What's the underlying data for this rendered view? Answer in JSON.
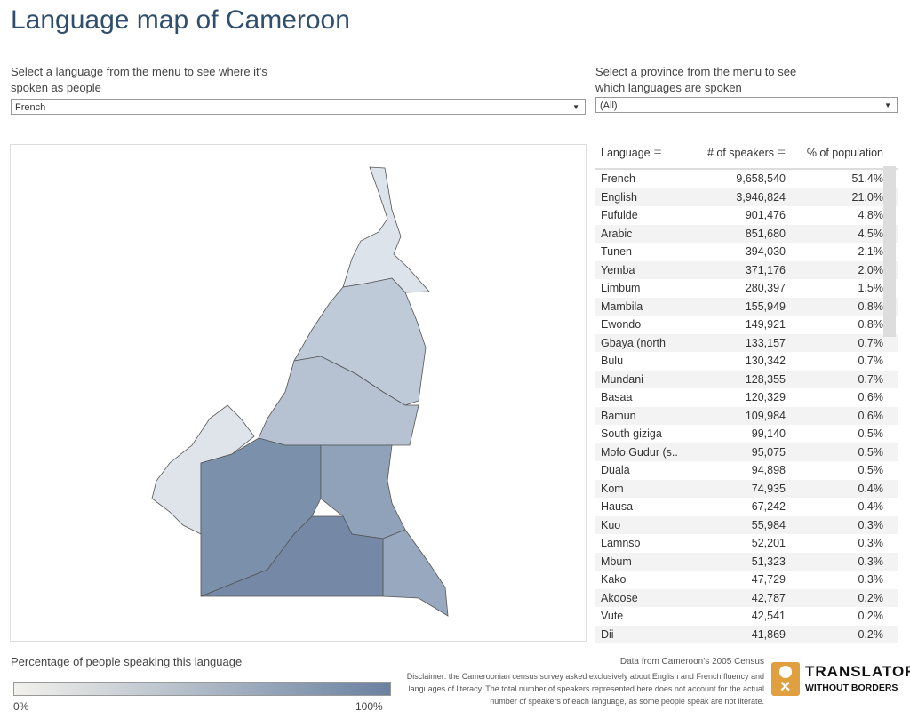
{
  "title": "Language map of Cameroon",
  "language_filter": {
    "label": "Select a language from the menu to see where it’s spoken as people",
    "value": "French"
  },
  "province_filter": {
    "label": "Select a province from the menu to see which languages are spoken",
    "value": "(All)"
  },
  "table": {
    "headers": [
      "Language",
      "# of speakers",
      "% of population"
    ],
    "rows": [
      [
        "French",
        "9,658,540",
        "51.4%"
      ],
      [
        "English",
        "3,946,824",
        "21.0%"
      ],
      [
        "Fufulde",
        "901,476",
        "4.8%"
      ],
      [
        "Arabic",
        "851,680",
        "4.5%"
      ],
      [
        "Tunen",
        "394,030",
        "2.1%"
      ],
      [
        "Yemba",
        "371,176",
        "2.0%"
      ],
      [
        "Limbum",
        "280,397",
        "1.5%"
      ],
      [
        "Mambila",
        "155,949",
        "0.8%"
      ],
      [
        "Ewondo",
        "149,921",
        "0.8%"
      ],
      [
        "Gbaya (north",
        "133,157",
        "0.7%"
      ],
      [
        "Bulu",
        "130,342",
        "0.7%"
      ],
      [
        "Mundani",
        "128,355",
        "0.7%"
      ],
      [
        "Basaa",
        "120,329",
        "0.6%"
      ],
      [
        "Bamun",
        "109,984",
        "0.6%"
      ],
      [
        "South giziga",
        "99,140",
        "0.5%"
      ],
      [
        "Mofo Gudur (s..",
        "95,075",
        "0.5%"
      ],
      [
        "Duala",
        "94,898",
        "0.5%"
      ],
      [
        "Kom",
        "74,935",
        "0.4%"
      ],
      [
        "Hausa",
        "67,242",
        "0.4%"
      ],
      [
        "Kuo",
        "55,984",
        "0.3%"
      ],
      [
        "Lamnso",
        "52,201",
        "0.3%"
      ],
      [
        "Mbum",
        "51,323",
        "0.3%"
      ],
      [
        "Kako",
        "47,729",
        "0.3%"
      ],
      [
        "Akoose",
        "42,787",
        "0.2%"
      ],
      [
        "Vute",
        "42,541",
        "0.2%"
      ],
      [
        "Dii",
        "41,869",
        "0.2%"
      ]
    ]
  },
  "legend": {
    "title": "Percentage of people speaking this language",
    "min": "0%",
    "max": "100%",
    "color_low": "#f2f1ec",
    "color_high": "#6a81a0"
  },
  "source": "Data from Cameroon’s 2005 Census",
  "disclaimer": [
    "Disclaimer: the Cameroonian census survey asked exclusively about English and French fluency and",
    "languages of literacy. The total number of speakers represented here does not account for the actual",
    "number of speakers of each language, as some people speak are not literate."
  ],
  "logo": {
    "line1": "TRANSLATORS",
    "line2": "WITHOUT BORDERS",
    "color": "#e0a040"
  }
}
